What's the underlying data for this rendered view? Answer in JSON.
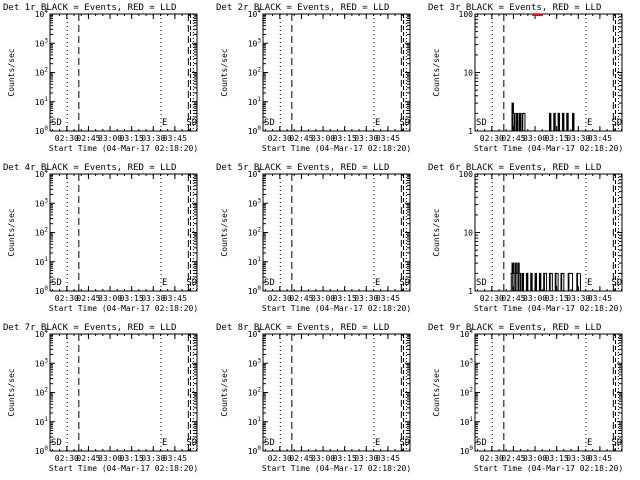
{
  "time_ticks": [
    "02:30",
    "02:45",
    "03:00",
    "03:15",
    "03:30",
    "03:45"
  ],
  "xlabel": "Start Time (04-Mar-17 02:18:20)",
  "ylabel": "Counts/sec",
  "flags": {
    "left": "SD",
    "mid": "E",
    "right": "SD"
  },
  "colors": {
    "events": "#000000",
    "lld": "#ff0000"
  },
  "chart_data": [
    {
      "type": "line",
      "title": "Det 1r BLACK = Events, RED = LLD",
      "scale": "log",
      "y_ticks": [
        {
          "b": 10,
          "e": 0
        },
        {
          "b": 10,
          "e": 1
        },
        {
          "b": 10,
          "e": 2
        },
        {
          "b": 10,
          "e": 3
        },
        {
          "b": 10,
          "e": 4
        }
      ],
      "ylim": [
        1,
        10000
      ],
      "events": [],
      "lld": []
    },
    {
      "type": "line",
      "title": "Det 2r BLACK = Events, RED = LLD",
      "scale": "log",
      "y_ticks": [
        {
          "b": 10,
          "e": 0
        },
        {
          "b": 10,
          "e": 1
        },
        {
          "b": 10,
          "e": 2
        },
        {
          "b": 10,
          "e": 3
        },
        {
          "b": 10,
          "e": 4
        }
      ],
      "ylim": [
        1,
        10000
      ],
      "events": [],
      "lld": []
    },
    {
      "type": "line",
      "title": "Det 3r BLACK = Events, RED = LLD",
      "scale": "log",
      "y_ticks": [
        {
          "t": "1"
        },
        {
          "t": "10"
        },
        {
          "t": "100"
        }
      ],
      "ylim": [
        1,
        100
      ],
      "events": [
        [
          "02:43",
          1
        ],
        [
          "02:44",
          3
        ],
        [
          "02:45",
          2
        ],
        [
          "02:46",
          1
        ],
        [
          "02:47",
          2
        ],
        [
          "02:48",
          1
        ],
        [
          "02:49",
          2
        ],
        [
          "02:50",
          1
        ],
        [
          "02:51",
          2
        ],
        [
          "02:53",
          1
        ],
        [
          "03:10",
          2
        ],
        [
          "03:11",
          1
        ],
        [
          "03:13",
          2
        ],
        [
          "03:14",
          1
        ],
        [
          "03:16",
          2
        ],
        [
          "03:17",
          1
        ],
        [
          "03:19",
          2
        ],
        [
          "03:20",
          1
        ],
        [
          "03:22",
          2
        ],
        [
          "03:23",
          1
        ],
        [
          "03:26",
          2
        ],
        [
          "03:27",
          1
        ],
        [
          "03:31",
          1
        ]
      ],
      "lld": [
        [
          "02:58",
          100
        ],
        [
          "03:05",
          100
        ]
      ]
    },
    {
      "type": "line",
      "title": "Det 4r BLACK = Events, RED = LLD",
      "scale": "log",
      "y_ticks": [
        {
          "b": 10,
          "e": 0
        },
        {
          "b": 10,
          "e": 1
        },
        {
          "b": 10,
          "e": 2
        },
        {
          "b": 10,
          "e": 3
        },
        {
          "b": 10,
          "e": 4
        }
      ],
      "ylim": [
        1,
        10000
      ],
      "events": [],
      "lld": []
    },
    {
      "type": "line",
      "title": "Det 5r BLACK = Events, RED = LLD",
      "scale": "log",
      "y_ticks": [
        {
          "b": 10,
          "e": 0
        },
        {
          "b": 10,
          "e": 1
        },
        {
          "b": 10,
          "e": 2
        },
        {
          "b": 10,
          "e": 3
        },
        {
          "b": 10,
          "e": 4
        }
      ],
      "ylim": [
        1,
        10000
      ],
      "events": [],
      "lld": []
    },
    {
      "type": "line",
      "title": "Det 6r BLACK = Events, RED = LLD",
      "scale": "log",
      "y_ticks": [
        {
          "t": "1"
        },
        {
          "t": "10"
        },
        {
          "t": "100"
        }
      ],
      "ylim": [
        1,
        100
      ],
      "events": [
        [
          "02:43",
          2
        ],
        [
          "02:44",
          3
        ],
        [
          "02:45",
          2
        ],
        [
          "02:46",
          3
        ],
        [
          "02:47",
          2
        ],
        [
          "02:48",
          3
        ],
        [
          "02:49",
          2
        ],
        [
          "02:50",
          1
        ],
        [
          "02:51",
          2
        ],
        [
          "02:52",
          1
        ],
        [
          "02:54",
          2
        ],
        [
          "02:55",
          1
        ],
        [
          "02:57",
          2
        ],
        [
          "02:58",
          1
        ],
        [
          "03:00",
          2
        ],
        [
          "03:01",
          1
        ],
        [
          "03:03",
          2
        ],
        [
          "03:04",
          1
        ],
        [
          "03:06",
          2
        ],
        [
          "03:08",
          1
        ],
        [
          "03:10",
          2
        ],
        [
          "03:12",
          1
        ],
        [
          "03:14",
          2
        ],
        [
          "03:16",
          1
        ],
        [
          "03:18",
          2
        ],
        [
          "03:20",
          1
        ],
        [
          "03:23",
          2
        ],
        [
          "03:26",
          1
        ],
        [
          "03:29",
          2
        ],
        [
          "03:31",
          2
        ]
      ],
      "lld": []
    },
    {
      "type": "line",
      "title": "Det 7r BLACK = Events, RED = LLD",
      "scale": "log",
      "y_ticks": [
        {
          "b": 10,
          "e": 0
        },
        {
          "b": 10,
          "e": 1
        },
        {
          "b": 10,
          "e": 2
        },
        {
          "b": 10,
          "e": 3
        },
        {
          "b": 10,
          "e": 4
        }
      ],
      "ylim": [
        1,
        10000
      ],
      "events": [],
      "lld": []
    },
    {
      "type": "line",
      "title": "Det 8r BLACK = Events, RED = LLD",
      "scale": "log",
      "y_ticks": [
        {
          "b": 10,
          "e": 0
        },
        {
          "b": 10,
          "e": 1
        },
        {
          "b": 10,
          "e": 2
        },
        {
          "b": 10,
          "e": 3
        },
        {
          "b": 10,
          "e": 4
        }
      ],
      "ylim": [
        1,
        10000
      ],
      "events": [],
      "lld": []
    },
    {
      "type": "line",
      "title": "Det 9r BLACK = Events, RED = LLD",
      "scale": "log",
      "y_ticks": [
        {
          "b": 10,
          "e": 0
        },
        {
          "b": 10,
          "e": 1
        },
        {
          "b": 10,
          "e": 2
        },
        {
          "b": 10,
          "e": 3
        },
        {
          "b": 10,
          "e": 4
        }
      ],
      "ylim": [
        1,
        10000
      ],
      "events": [],
      "lld": []
    }
  ]
}
